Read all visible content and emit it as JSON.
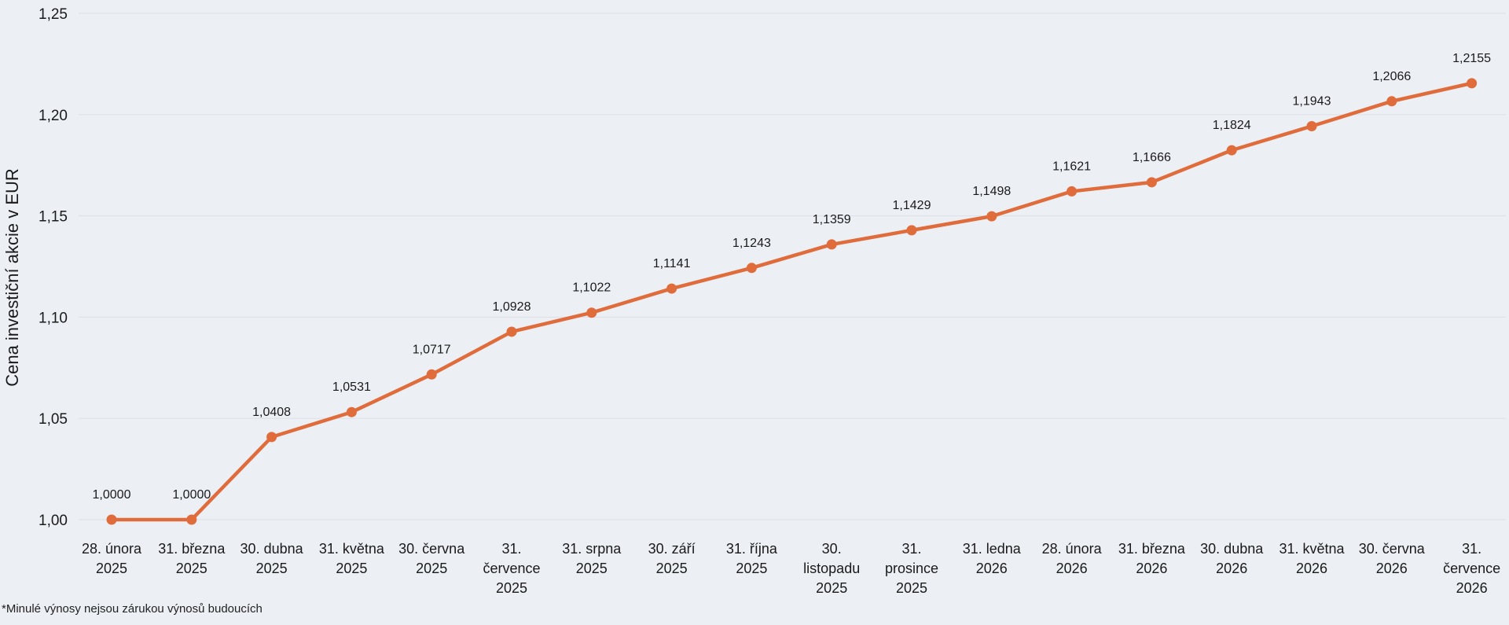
{
  "chart_data": {
    "type": "line",
    "ylabel": "Cena investiční akcie v EUR",
    "xlabel": "",
    "ylim": [
      1.0,
      1.25
    ],
    "yticks": [
      "1,00",
      "1,05",
      "1,10",
      "1,15",
      "1,20",
      "1,25"
    ],
    "ytick_values": [
      1.0,
      1.05,
      1.1,
      1.15,
      1.2,
      1.25
    ],
    "grid": true,
    "legend": "none",
    "categories": [
      [
        "28. února",
        "2025"
      ],
      [
        "31. března",
        "2025"
      ],
      [
        "30. dubna",
        "2025"
      ],
      [
        "31. května",
        "2025"
      ],
      [
        "30. června",
        "2025"
      ],
      [
        "31.",
        "července",
        "2025"
      ],
      [
        "31. srpna",
        "2025"
      ],
      [
        "30. září",
        "2025"
      ],
      [
        "31. října",
        "2025"
      ],
      [
        "30.",
        "listopadu",
        "2025"
      ],
      [
        "31.",
        "prosince",
        "2025"
      ],
      [
        "31. ledna",
        "2026"
      ],
      [
        "28. února",
        "2026"
      ],
      [
        "31. března",
        "2026"
      ],
      [
        "30. dubna",
        "2026"
      ],
      [
        "31. května",
        "2026"
      ],
      [
        "30. června",
        "2026"
      ],
      [
        "31.",
        "července",
        "2026"
      ]
    ],
    "values": [
      1.0,
      1.0,
      1.0408,
      1.0531,
      1.0717,
      1.0928,
      1.1022,
      1.1141,
      1.1243,
      1.1359,
      1.1429,
      1.1498,
      1.1621,
      1.1666,
      1.1824,
      1.1943,
      1.2066,
      1.2155
    ],
    "value_labels": [
      "1,0000",
      "1,0000",
      "1,0408",
      "1,0531",
      "1,0717",
      "1,0928",
      "1,1022",
      "1,1141",
      "1,1243",
      "1,1359",
      "1,1429",
      "1,1498",
      "1,1621",
      "1,1666",
      "1,1824",
      "1,1943",
      "1,2066",
      "1,2155"
    ],
    "colors": {
      "line": "#e06c3c",
      "grid": "#dde1e7",
      "background": "#eceff4"
    }
  },
  "footnote": "*Minulé výnosy nejsou zárukou výnosů budoucích"
}
